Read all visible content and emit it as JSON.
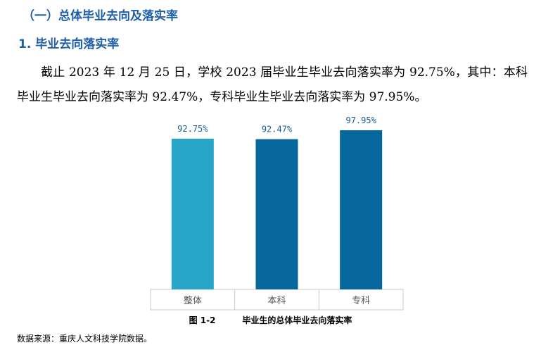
{
  "section_heading": "（一）总体毕业去向及落实率",
  "subsection_heading": "1. 毕业去向落实率",
  "paragraph": "截止 2023 年 12 月 25 日，学校 2023 届毕业生毕业去向落实率为 92.75%，其中：本科毕业生毕业去向落实率为 92.47%，专科毕业生毕业去向落实率为 97.95%。",
  "figure": {
    "number": "图 1-2",
    "caption": "毕业生的总体毕业去向落实率"
  },
  "source_note": "数据来源：重庆人文科技学院数据。",
  "chart_data": {
    "type": "bar",
    "categories": [
      "整体",
      "本科",
      "专科"
    ],
    "values": [
      92.75,
      92.47,
      97.95
    ],
    "value_labels": [
      "92.75%",
      "92.47%",
      "97.95%"
    ],
    "unit": "%",
    "colors": [
      "#26a5c9",
      "#05679b",
      "#05679b"
    ],
    "label_color": "#1b5d8f",
    "grid": false,
    "legend": "none"
  }
}
